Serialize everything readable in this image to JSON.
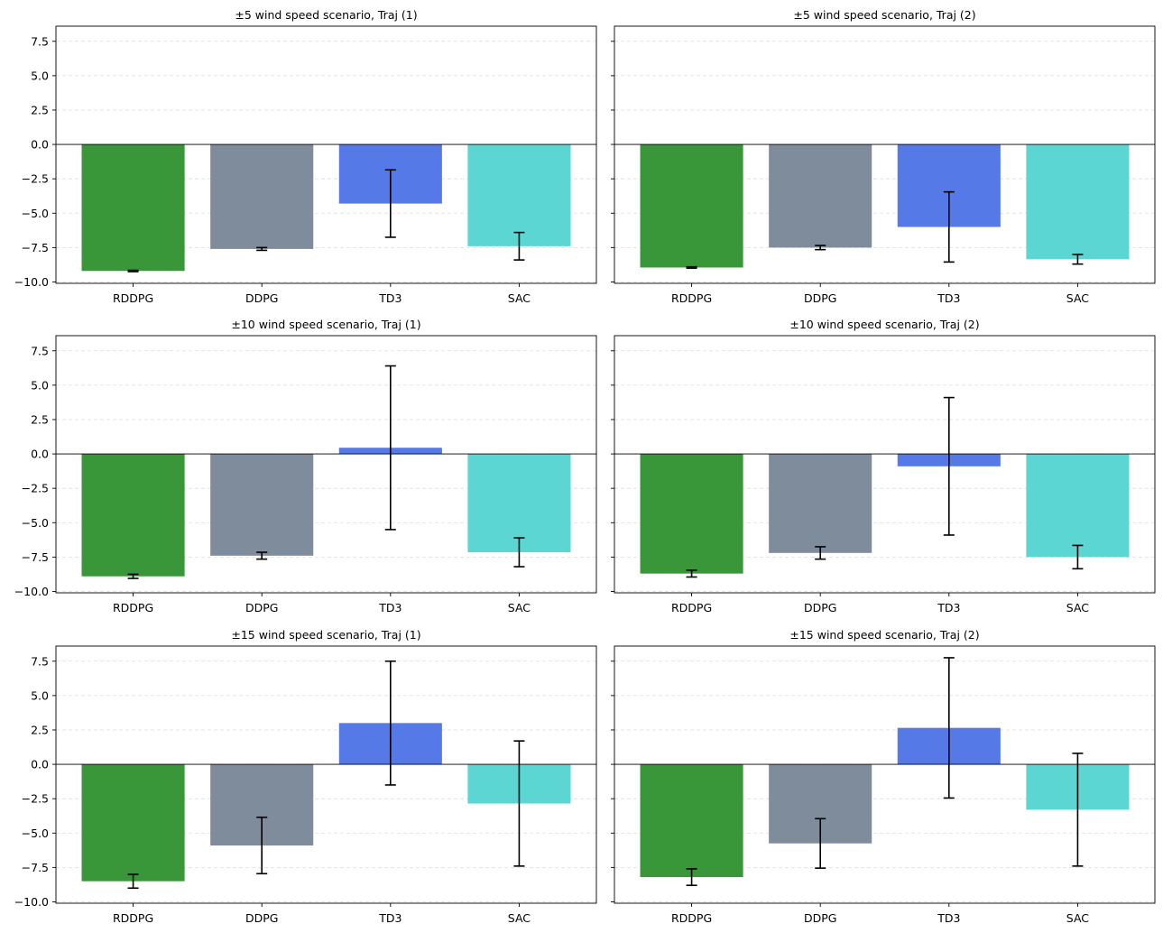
{
  "figure": {
    "background": "#ffffff",
    "grid": "y-dashed",
    "sharey": true
  },
  "colors": {
    "RDDPG": "#3a9739",
    "DDPG": "#7f8c9c",
    "TD3": "#5579e6",
    "SAC": "#5bd6d3",
    "errorbar": "#000000",
    "zero_line": "#000000",
    "grid": "#dddddd"
  },
  "chart_data": [
    {
      "type": "bar",
      "title": "±5 wind speed scenario, Traj (1)",
      "categories": [
        "RDDPG",
        "DDPG",
        "TD3",
        "SAC"
      ],
      "values": [
        -9.2,
        -7.6,
        -4.3,
        -7.4
      ],
      "errors": [
        0.05,
        0.1,
        2.45,
        1.0
      ],
      "ylim": [
        -10.1,
        8.6
      ],
      "yticks": [
        -10.0,
        -7.5,
        -5.0,
        -2.5,
        0.0,
        2.5,
        5.0,
        7.5
      ],
      "ytick_labels": [
        "−10.0",
        "−7.5",
        "−5.0",
        "−2.5",
        "0.0",
        "2.5",
        "5.0",
        "7.5"
      ],
      "show_ytick_labels": true,
      "xlabel": "",
      "ylabel": ""
    },
    {
      "type": "bar",
      "title": "±5 wind speed scenario, Traj (2)",
      "categories": [
        "RDDPG",
        "DDPG",
        "TD3",
        "SAC"
      ],
      "values": [
        -8.95,
        -7.5,
        -6.0,
        -8.35
      ],
      "errors": [
        0.05,
        0.15,
        2.55,
        0.35
      ],
      "ylim": [
        -10.1,
        8.6
      ],
      "yticks": [
        -10.0,
        -7.5,
        -5.0,
        -2.5,
        0.0,
        2.5,
        5.0,
        7.5
      ],
      "ytick_labels": [
        "−10.0",
        "−7.5",
        "−5.0",
        "−2.5",
        "0.0",
        "2.5",
        "5.0",
        "7.5"
      ],
      "show_ytick_labels": false,
      "xlabel": "",
      "ylabel": ""
    },
    {
      "type": "bar",
      "title": "±10 wind speed scenario, Traj (1)",
      "categories": [
        "RDDPG",
        "DDPG",
        "TD3",
        "SAC"
      ],
      "values": [
        -8.9,
        -7.4,
        0.45,
        -7.15
      ],
      "errors": [
        0.15,
        0.25,
        5.95,
        1.05
      ],
      "ylim": [
        -10.1,
        8.6
      ],
      "yticks": [
        -10.0,
        -7.5,
        -5.0,
        -2.5,
        0.0,
        2.5,
        5.0,
        7.5
      ],
      "ytick_labels": [
        "−10.0",
        "−7.5",
        "−5.0",
        "−2.5",
        "0.0",
        "2.5",
        "5.0",
        "7.5"
      ],
      "show_ytick_labels": true,
      "xlabel": "",
      "ylabel": ""
    },
    {
      "type": "bar",
      "title": "±10 wind speed scenario, Traj (2)",
      "categories": [
        "RDDPG",
        "DDPG",
        "TD3",
        "SAC"
      ],
      "values": [
        -8.7,
        -7.2,
        -0.9,
        -7.5
      ],
      "errors": [
        0.25,
        0.45,
        5.0,
        0.85
      ],
      "ylim": [
        -10.1,
        8.6
      ],
      "yticks": [
        -10.0,
        -7.5,
        -5.0,
        -2.5,
        0.0,
        2.5,
        5.0,
        7.5
      ],
      "ytick_labels": [
        "−10.0",
        "−7.5",
        "−5.0",
        "−2.5",
        "0.0",
        "2.5",
        "5.0",
        "7.5"
      ],
      "show_ytick_labels": false,
      "xlabel": "",
      "ylabel": ""
    },
    {
      "type": "bar",
      "title": "±15 wind speed scenario, Traj (1)",
      "categories": [
        "RDDPG",
        "DDPG",
        "TD3",
        "SAC"
      ],
      "values": [
        -8.5,
        -5.9,
        3.0,
        -2.85
      ],
      "errors": [
        0.5,
        2.05,
        4.5,
        4.55
      ],
      "ylim": [
        -10.1,
        8.6
      ],
      "yticks": [
        -10.0,
        -7.5,
        -5.0,
        -2.5,
        0.0,
        2.5,
        5.0,
        7.5
      ],
      "ytick_labels": [
        "−10.0",
        "−7.5",
        "−5.0",
        "−2.5",
        "0.0",
        "2.5",
        "5.0",
        "7.5"
      ],
      "show_ytick_labels": true,
      "xlabel": "",
      "ylabel": ""
    },
    {
      "type": "bar",
      "title": "±15 wind speed scenario, Traj (2)",
      "categories": [
        "RDDPG",
        "DDPG",
        "TD3",
        "SAC"
      ],
      "values": [
        -8.2,
        -5.75,
        2.65,
        -3.3
      ],
      "errors": [
        0.6,
        1.8,
        5.1,
        4.1
      ],
      "ylim": [
        -10.1,
        8.6
      ],
      "yticks": [
        -10.0,
        -7.5,
        -5.0,
        -2.5,
        0.0,
        2.5,
        5.0,
        7.5
      ],
      "ytick_labels": [
        "−10.0",
        "−7.5",
        "−5.0",
        "−2.5",
        "0.0",
        "2.5",
        "5.0",
        "7.5"
      ],
      "show_ytick_labels": false,
      "xlabel": "",
      "ylabel": ""
    }
  ]
}
